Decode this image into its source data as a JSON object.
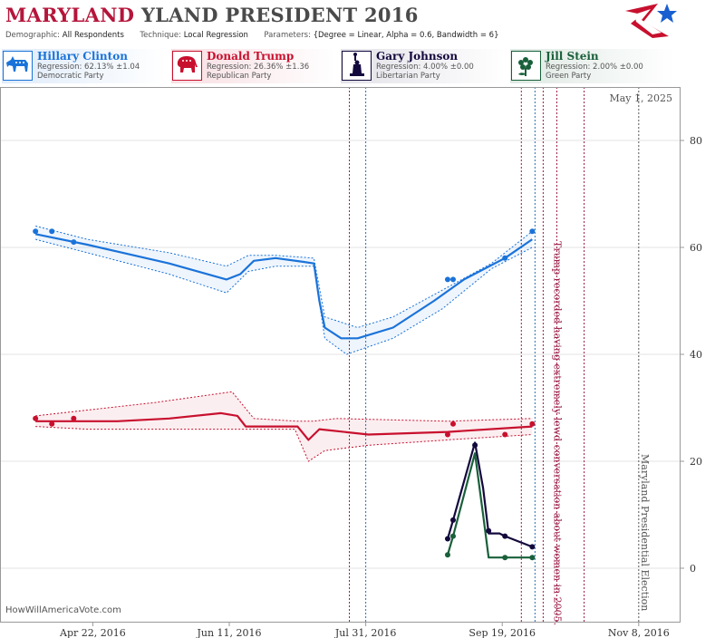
{
  "header": {
    "title_part1": "MARYLAND",
    "title_part2": "YLAND PRESIDENT 2016",
    "demographic_label": "Demographic:",
    "demographic_value": "All Respondents",
    "technique_label": "Technique:",
    "technique_value": "Local Regression",
    "parameters_label": "Parameters:",
    "parameters_value": "{Degree = Linear, Alpha = 0.6, Bandwidth = 6}"
  },
  "candidates": [
    {
      "name": "Hillary Clinton",
      "regression": "Regression: 62.13% ±1.04",
      "party": "Democratic Party",
      "color": "#1a73d9",
      "icon": "donkey-icon"
    },
    {
      "name": "Donald Trump",
      "regression": "Regression: 26.36% ±1.36",
      "party": "Republican Party",
      "color": "#c8102e",
      "icon": "elephant-icon"
    },
    {
      "name": "Gary Johnson",
      "regression": "Regression: 4.00% ±0.00",
      "party": "Libertarian Party",
      "color": "#14093d",
      "icon": "statue-of-liberty-icon"
    },
    {
      "name": "Jill Stein",
      "regression": "Regression: 2.00% ±0.00",
      "party": "Green Party",
      "color": "#19603a",
      "icon": "flower-icon"
    }
  ],
  "watermark": "HowWillAmericaVote.com",
  "chart_data": {
    "type": "line",
    "x_ticks": [
      "Apr 22, 2016",
      "Jun 11, 2016",
      "Jul 31, 2016",
      "Sep 19, 2016",
      "Nov 8, 2016"
    ],
    "y_ticks": [
      "0",
      "20",
      "40",
      "60",
      "80"
    ],
    "ylim": [
      -10,
      90
    ],
    "xlim": [
      "2016-03-19",
      "2016-11-23"
    ],
    "date_label": "May 1, 2025",
    "annotations": [
      {
        "date": "2016-10-07",
        "text": "Trump recorded having extremely lewd conversation about women in 2005."
      },
      {
        "date": "2016-11-08",
        "text": "Maryland Presidential Election"
      }
    ],
    "vlines_red": [
      "2016-07-25",
      "2016-09-26",
      "2016-10-04",
      "2016-10-09",
      "2016-10-19"
    ],
    "vlines_blue": [
      "2016-07-31",
      "2016-10-01"
    ],
    "series": [
      {
        "name": "Hillary Clinton",
        "color": "#1a73d9",
        "points": [
          [
            "2016-04-01",
            63
          ],
          [
            "2016-04-07",
            63
          ],
          [
            "2016-04-15",
            61
          ],
          [
            "2016-08-30",
            54
          ],
          [
            "2016-09-01",
            54
          ],
          [
            "2016-09-20",
            58
          ],
          [
            "2016-09-30",
            63
          ]
        ],
        "smooth": [
          [
            "2016-04-01",
            62.5
          ],
          [
            "2016-04-20",
            60.5
          ],
          [
            "2016-05-20",
            57
          ],
          [
            "2016-06-10",
            54
          ],
          [
            "2016-06-15",
            55
          ],
          [
            "2016-06-20",
            57.5
          ],
          [
            "2016-06-28",
            58
          ],
          [
            "2016-07-08",
            57.3
          ],
          [
            "2016-07-12",
            57
          ],
          [
            "2016-07-14",
            50
          ],
          [
            "2016-07-16",
            45
          ],
          [
            "2016-07-22",
            43
          ],
          [
            "2016-07-28",
            43
          ],
          [
            "2016-08-10",
            45
          ],
          [
            "2016-08-25",
            50
          ],
          [
            "2016-09-05",
            54
          ],
          [
            "2016-09-20",
            58
          ],
          [
            "2016-09-30",
            61.5
          ]
        ],
        "upper": [
          [
            "2016-04-01",
            64
          ],
          [
            "2016-04-20",
            61.5
          ],
          [
            "2016-05-20",
            59
          ],
          [
            "2016-06-10",
            56.5
          ],
          [
            "2016-06-18",
            58.5
          ],
          [
            "2016-06-28",
            58.5
          ],
          [
            "2016-07-12",
            58
          ],
          [
            "2016-07-16",
            47
          ],
          [
            "2016-07-28",
            45
          ],
          [
            "2016-08-10",
            47
          ],
          [
            "2016-08-28",
            52
          ],
          [
            "2016-09-15",
            57
          ],
          [
            "2016-09-30",
            63
          ]
        ],
        "lower": [
          [
            "2016-04-01",
            61.5
          ],
          [
            "2016-04-20",
            59
          ],
          [
            "2016-05-20",
            55
          ],
          [
            "2016-06-10",
            51.5
          ],
          [
            "2016-06-18",
            55.5
          ],
          [
            "2016-06-28",
            56.5
          ],
          [
            "2016-07-12",
            56.5
          ],
          [
            "2016-07-16",
            43
          ],
          [
            "2016-07-24",
            40
          ],
          [
            "2016-08-10",
            43
          ],
          [
            "2016-08-28",
            48.5
          ],
          [
            "2016-09-15",
            56
          ],
          [
            "2016-09-30",
            60
          ]
        ]
      },
      {
        "name": "Donald Trump",
        "color": "#c8102e",
        "points": [
          [
            "2016-04-01",
            28
          ],
          [
            "2016-04-07",
            27
          ],
          [
            "2016-04-15",
            28
          ],
          [
            "2016-08-30",
            25
          ],
          [
            "2016-09-01",
            27
          ],
          [
            "2016-09-20",
            25
          ],
          [
            "2016-09-30",
            27
          ]
        ],
        "smooth": [
          [
            "2016-04-01",
            27.5
          ],
          [
            "2016-05-01",
            27.5
          ],
          [
            "2016-05-20",
            28
          ],
          [
            "2016-06-08",
            29
          ],
          [
            "2016-06-14",
            28.5
          ],
          [
            "2016-06-17",
            26.5
          ],
          [
            "2016-07-06",
            26.5
          ],
          [
            "2016-07-10",
            24
          ],
          [
            "2016-07-14",
            26
          ],
          [
            "2016-08-01",
            25
          ],
          [
            "2016-08-30",
            25.5
          ],
          [
            "2016-09-30",
            26.5
          ]
        ],
        "upper": [
          [
            "2016-04-01",
            28.5
          ],
          [
            "2016-05-15",
            31
          ],
          [
            "2016-06-12",
            33
          ],
          [
            "2016-06-16",
            30.5
          ],
          [
            "2016-06-20",
            28
          ],
          [
            "2016-07-06",
            27.5
          ],
          [
            "2016-07-12",
            27.5
          ],
          [
            "2016-07-20",
            28
          ],
          [
            "2016-08-30",
            27.5
          ],
          [
            "2016-09-30",
            28
          ]
        ],
        "lower": [
          [
            "2016-04-01",
            26.5
          ],
          [
            "2016-04-20",
            26
          ],
          [
            "2016-06-18",
            26
          ],
          [
            "2016-07-05",
            26
          ],
          [
            "2016-07-10",
            20
          ],
          [
            "2016-07-16",
            22
          ],
          [
            "2016-08-01",
            23
          ],
          [
            "2016-08-30",
            24
          ],
          [
            "2016-09-30",
            25
          ]
        ]
      },
      {
        "name": "Gary Johnson",
        "color": "#14093d",
        "points": [
          [
            "2016-08-30",
            5.5
          ],
          [
            "2016-09-01",
            9
          ],
          [
            "2016-09-09",
            23
          ],
          [
            "2016-09-14",
            7
          ],
          [
            "2016-09-20",
            6
          ],
          [
            "2016-09-30",
            4
          ]
        ],
        "smooth": [
          [
            "2016-08-30",
            5.5
          ],
          [
            "2016-09-01",
            9
          ],
          [
            "2016-09-09",
            23.5
          ],
          [
            "2016-09-12",
            15
          ],
          [
            "2016-09-14",
            6.5
          ],
          [
            "2016-09-18",
            6.5
          ],
          [
            "2016-09-20",
            6
          ],
          [
            "2016-09-30",
            4
          ]
        ]
      },
      {
        "name": "Jill Stein",
        "color": "#19603a",
        "points": [
          [
            "2016-08-30",
            2.5
          ],
          [
            "2016-09-01",
            6
          ],
          [
            "2016-09-20",
            2
          ],
          [
            "2016-09-30",
            2
          ]
        ],
        "smooth": [
          [
            "2016-08-30",
            2.5
          ],
          [
            "2016-09-01",
            6
          ],
          [
            "2016-09-09",
            21.5
          ],
          [
            "2016-09-12",
            10
          ],
          [
            "2016-09-14",
            2
          ],
          [
            "2016-09-30",
            2
          ]
        ]
      }
    ]
  }
}
